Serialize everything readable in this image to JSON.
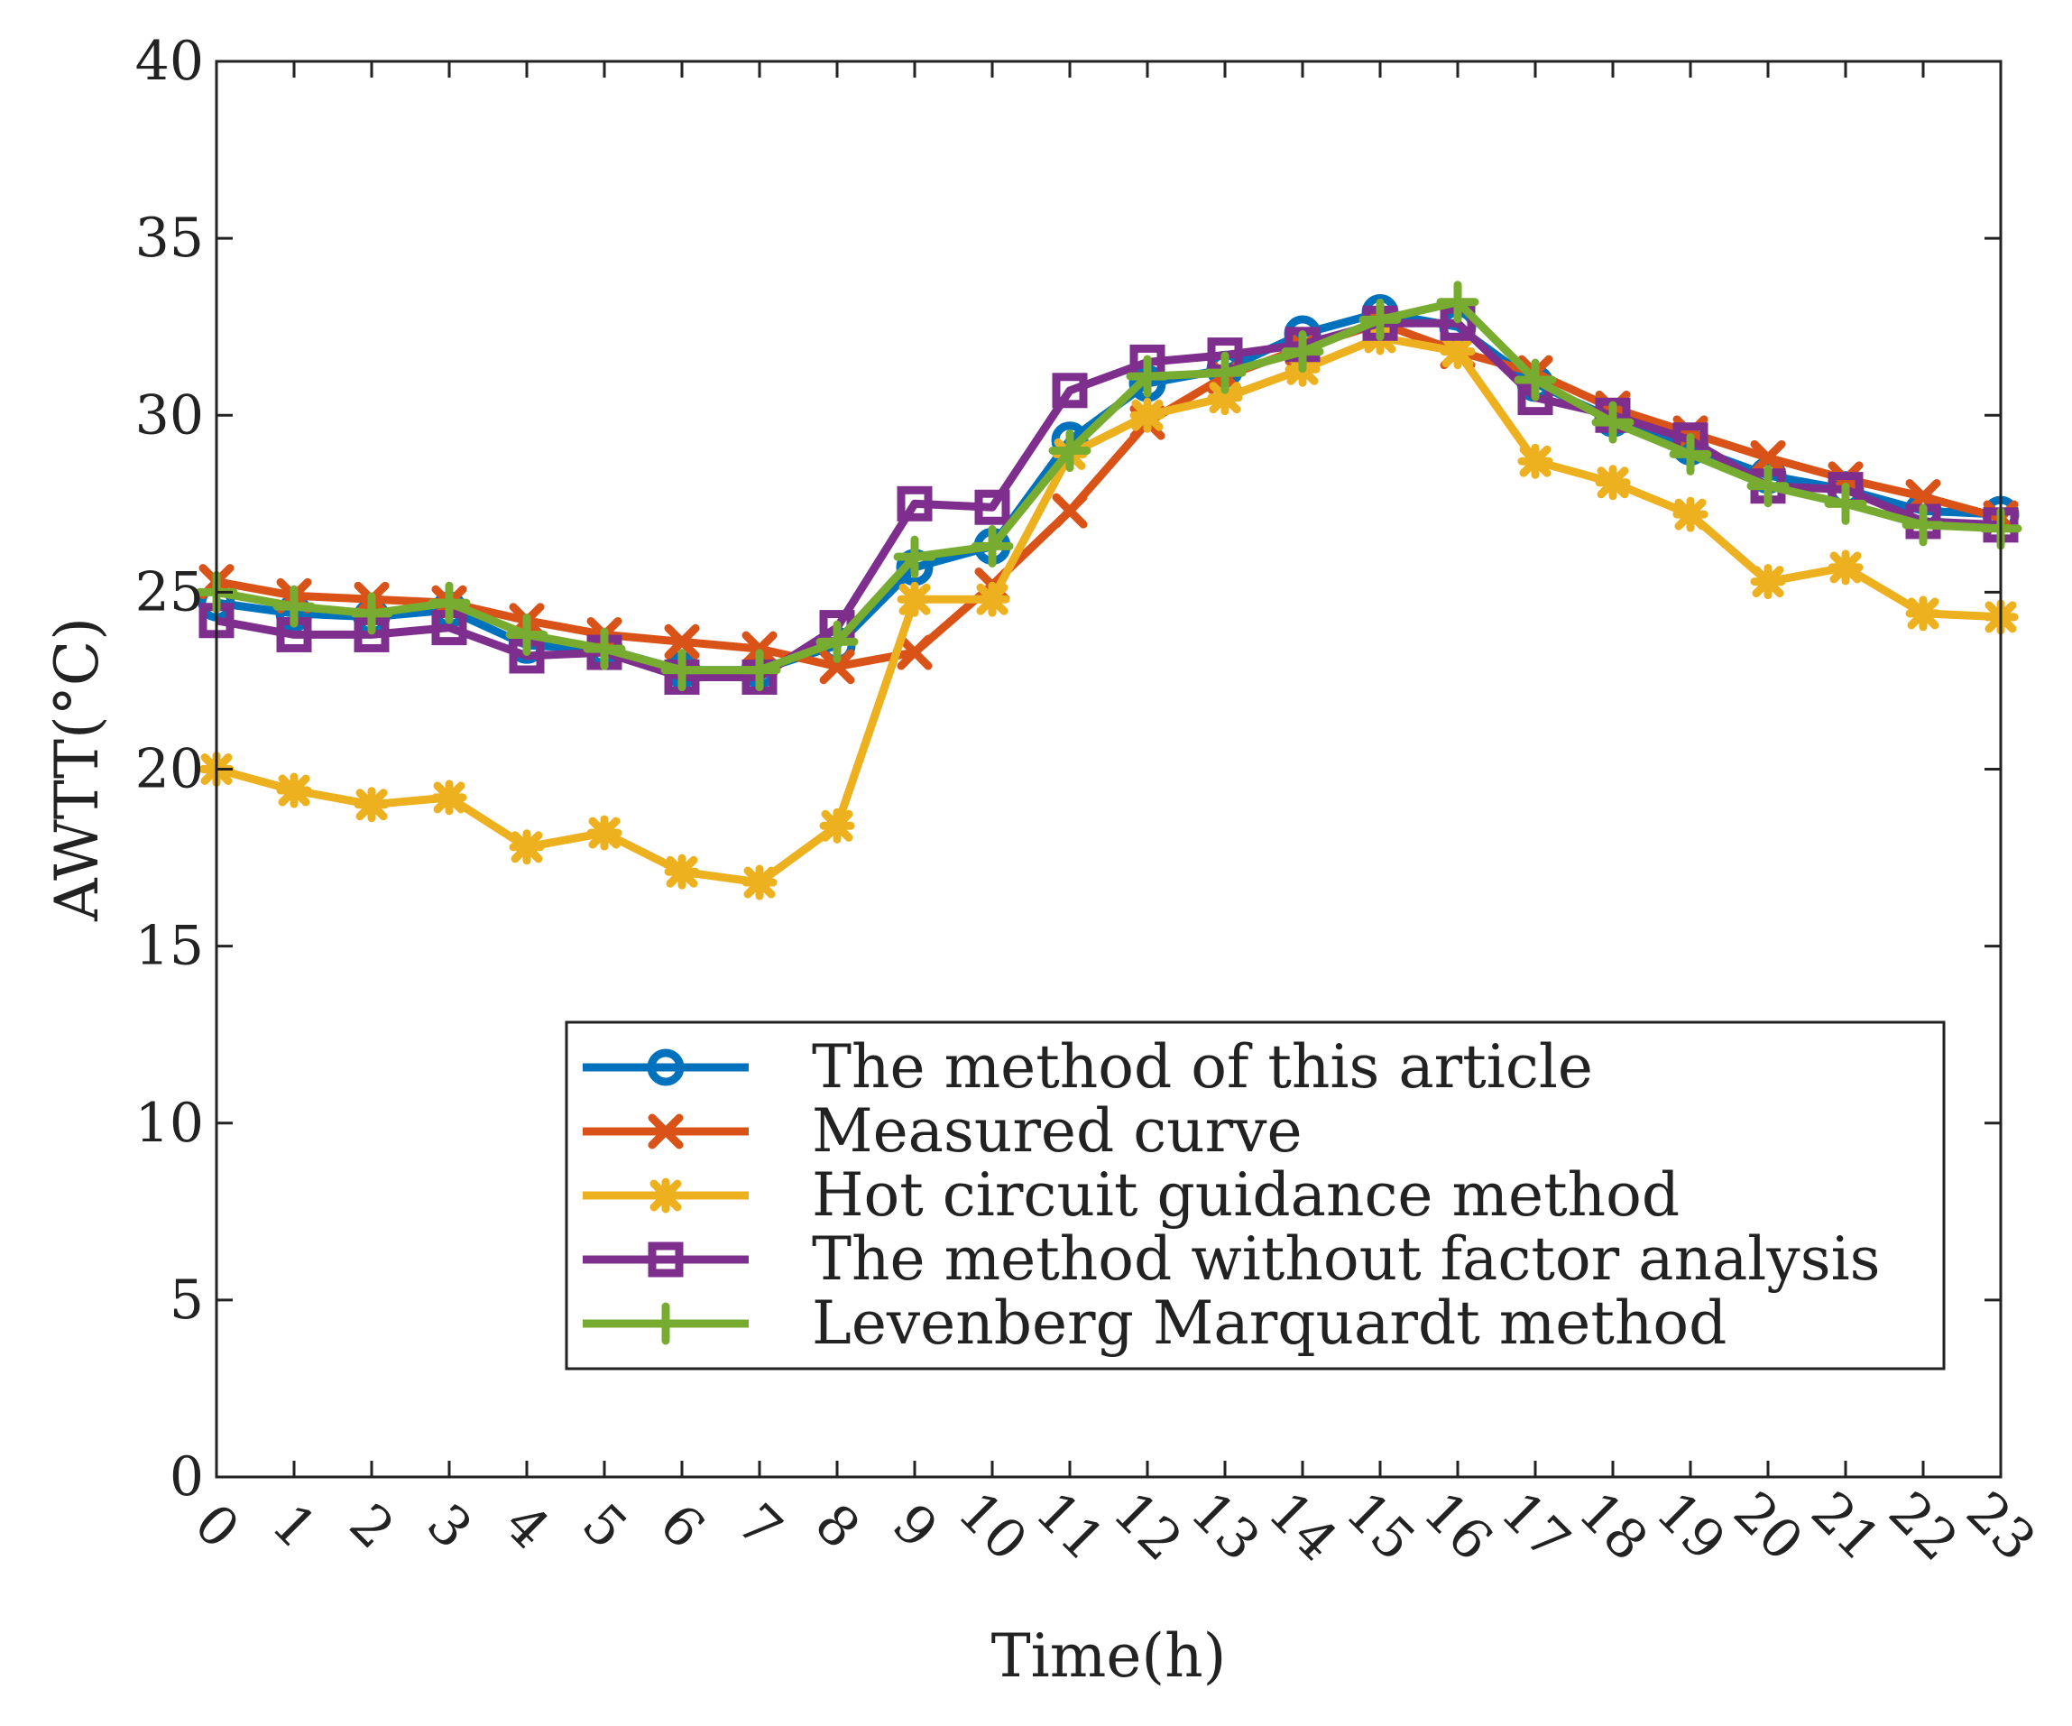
{
  "chart_data": {
    "type": "line",
    "title": "",
    "xlabel": "Time(h)",
    "ylabel": "AWTT(°C)",
    "categories": [
      "0",
      "1",
      "2",
      "3",
      "4",
      "5",
      "6",
      "7",
      "8",
      "9",
      "10",
      "11",
      "12",
      "13",
      "14",
      "15",
      "16",
      "17",
      "18",
      "19",
      "20",
      "21",
      "22",
      "23"
    ],
    "x": [
      0,
      1,
      2,
      3,
      4,
      5,
      6,
      7,
      8,
      9,
      10,
      11,
      12,
      13,
      14,
      15,
      16,
      17,
      18,
      19,
      20,
      21,
      22,
      23
    ],
    "ylim": [
      0,
      40
    ],
    "yticks": [
      0,
      5,
      10,
      15,
      20,
      25,
      30,
      35,
      40
    ],
    "grid": false,
    "legend_position": "bottom-right",
    "series": [
      {
        "name": "The method of this article",
        "color": "#0072BD",
        "marker": "circle",
        "values": [
          24.7,
          24.4,
          24.3,
          24.5,
          23.5,
          23.4,
          22.8,
          22.8,
          23.5,
          25.7,
          26.3,
          29.3,
          30.9,
          31.3,
          32.3,
          32.9,
          32.5,
          30.9,
          29.9,
          29.1,
          28.3,
          27.9,
          27.3,
          27.2
        ]
      },
      {
        "name": "Measured curve",
        "color": "#D95319",
        "marker": "x",
        "values": [
          25.3,
          24.9,
          24.8,
          24.7,
          24.2,
          23.8,
          23.6,
          23.4,
          22.9,
          23.3,
          25.2,
          27.3,
          29.8,
          31.1,
          31.9,
          32.6,
          31.8,
          31.2,
          30.2,
          29.5,
          28.8,
          28.2,
          27.7,
          27.1
        ]
      },
      {
        "name": "Hot circuit guidance method",
        "color": "#EDB120",
        "marker": "asterisk",
        "values": [
          20.0,
          19.4,
          19.0,
          19.2,
          17.8,
          18.2,
          17.1,
          16.8,
          18.4,
          24.8,
          24.8,
          28.9,
          30.0,
          30.5,
          31.3,
          32.2,
          31.8,
          28.7,
          28.1,
          27.2,
          25.3,
          25.7,
          24.4,
          24.3
        ]
      },
      {
        "name": "The method without factor analysis",
        "color": "#7E2F8E",
        "marker": "square",
        "values": [
          24.2,
          23.8,
          23.8,
          24.0,
          23.2,
          23.3,
          22.6,
          22.6,
          24.0,
          27.5,
          27.4,
          30.7,
          31.5,
          31.7,
          32.0,
          32.6,
          32.6,
          30.5,
          30.0,
          29.3,
          28.0,
          27.9,
          27.0,
          26.9
        ]
      },
      {
        "name": "Levenberg Marquardt method",
        "color": "#77AC30",
        "marker": "plus",
        "values": [
          25.0,
          24.6,
          24.4,
          24.7,
          23.8,
          23.4,
          22.8,
          22.8,
          23.6,
          26.0,
          26.3,
          29.0,
          31.1,
          31.2,
          31.8,
          32.7,
          33.2,
          31.0,
          29.8,
          28.9,
          28.0,
          27.5,
          26.9,
          26.8
        ]
      }
    ]
  }
}
